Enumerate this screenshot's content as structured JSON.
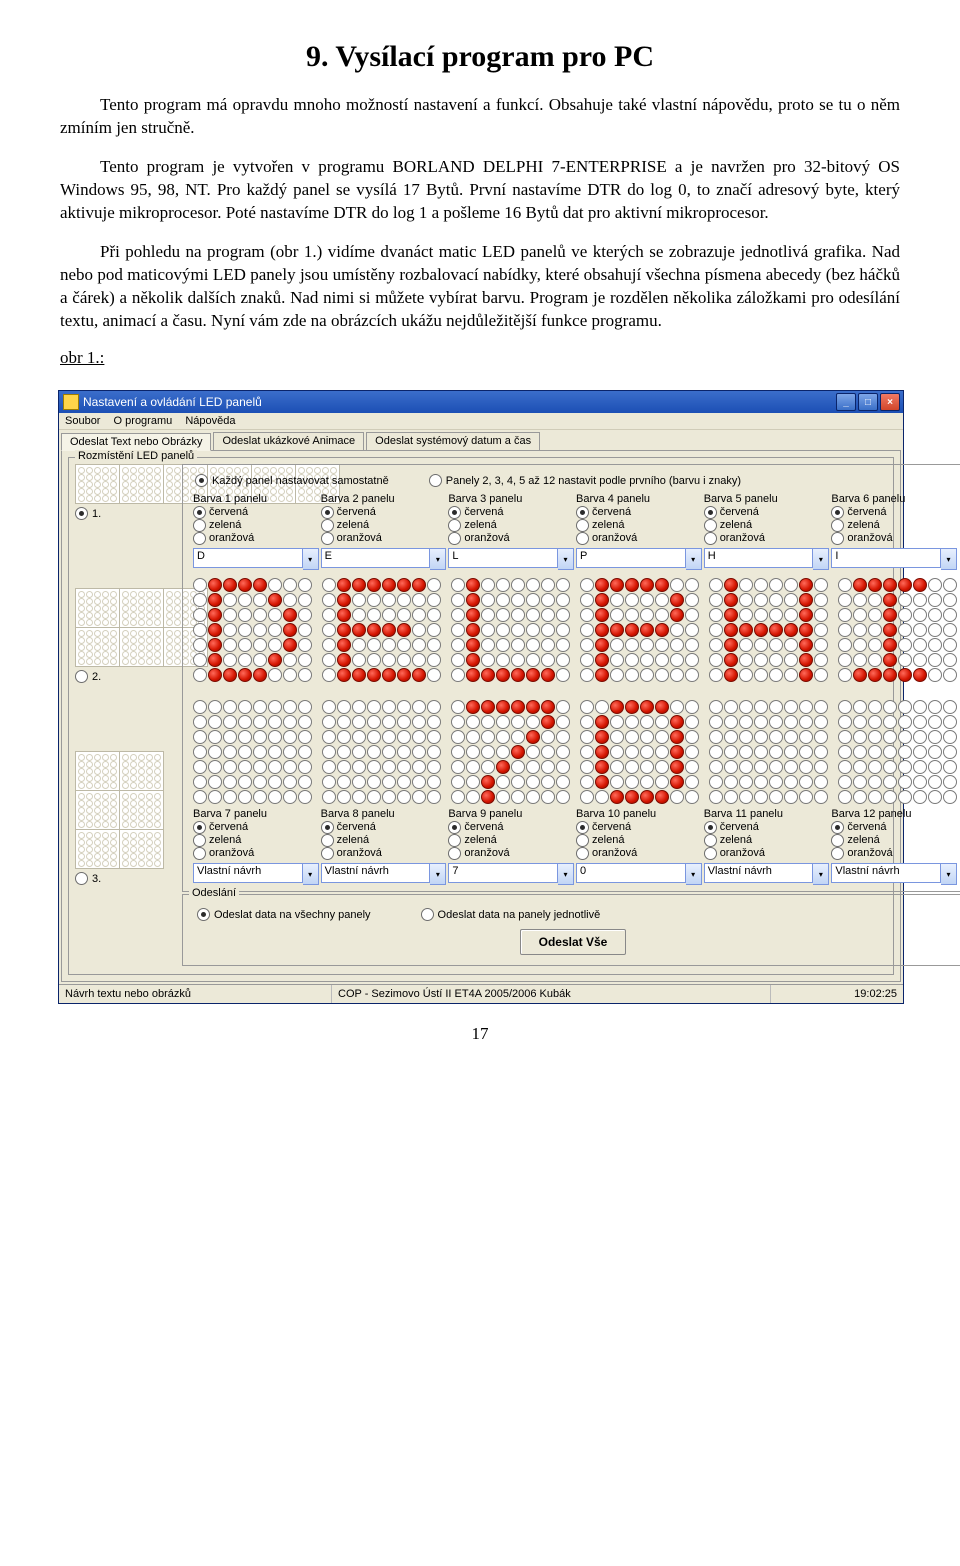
{
  "doc": {
    "title": "9. Vysílací program pro PC",
    "p1": "Tento program má opravdu mnoho možností nastavení a funkcí. Obsahuje také vlastní nápovědu, proto se tu o něm zmíním jen stručně.",
    "p2": "Tento program je vytvořen v programu BORLAND DELPHI 7-ENTERPRISE a je navržen pro 32-bitový OS Windows 95, 98, NT. Pro každý panel se vysílá 17 Bytů. První nastavíme DTR do log 0, to značí adresový byte, který aktivuje mikroprocesor. Poté nastavíme DTR do log 1 a pošleme 16 Bytů dat pro aktivní mikroprocesor.",
    "p3": "Při pohledu na program (obr 1.) vidíme dvanáct matic LED panelů ve kterých se zobrazuje jednotlivá grafika. Nad nebo pod maticovými LED panely jsou umístěny rozbalovací nabídky, které obsahují všechna písmena abecedy (bez háčků a čárek) a několik dalších znaků. Nad nimi si můžete vybírat barvu. Program je rozdělen několika záložkami pro odesílání textu, animací a času. Nyní vám zde na obrázcích ukážu nejdůležitější funkce programu.",
    "figlabel": "obr 1.:",
    "pagenum": "17"
  },
  "app": {
    "title": "Nastavení a ovládání LED panelů",
    "menu": [
      "Soubor",
      "O programu",
      "Nápověda"
    ],
    "tabs": [
      "Odeslat Text nebo Obrázky",
      "Odeslat ukázkové Animace",
      "Odeslat systémový datum a čas"
    ],
    "layoutLegend": "Rozmístění LED panelů",
    "layoutRadios": [
      "1.",
      "2.",
      "3."
    ],
    "modeA": "Každý panel nastavovat samostatně",
    "modeB": "Panely 2, 3, 4, 5 až 12 nastavit podle prvního (barvu i znaky)",
    "colorLabels": [
      "červená",
      "zelená",
      "oranžová"
    ],
    "panelsTop": [
      {
        "head": "Barva 1 panelu",
        "sel": 0,
        "combo": "D"
      },
      {
        "head": "Barva 2 panelu",
        "sel": 0,
        "combo": "E"
      },
      {
        "head": "Barva 3 panelu",
        "sel": 0,
        "combo": "L"
      },
      {
        "head": "Barva 4 panelu",
        "sel": 0,
        "combo": "P"
      },
      {
        "head": "Barva 5 panelu",
        "sel": 0,
        "combo": "H"
      },
      {
        "head": "Barva 6 panelu",
        "sel": 0,
        "combo": "I"
      }
    ],
    "panelsBot": [
      {
        "head": "Barva 7 panelu",
        "sel": 0,
        "combo": "Vlastní návrh"
      },
      {
        "head": "Barva 8 panelu",
        "sel": 0,
        "combo": "Vlastní návrh"
      },
      {
        "head": "Barva 9 panelu",
        "sel": 0,
        "combo": "7"
      },
      {
        "head": "Barva 10 panelu",
        "sel": 0,
        "combo": "0"
      },
      {
        "head": "Barva 11 panelu",
        "sel": 0,
        "combo": "Vlastní návrh"
      },
      {
        "head": "Barva 12 panelu",
        "sel": 0,
        "combo": "Vlastní návrh"
      }
    ],
    "sendLegend": "Odeslání",
    "sendA": "Odeslat data na všechny panely",
    "sendB": "Odeslat data na panely jednotlivě",
    "sendBtn": "Odeslat Vše",
    "status": {
      "left": "Návrh textu nebo obrázků",
      "mid": "COP - Sezimovo Ústí II  ET4A 2005/2006 Kubák",
      "right": "19:02:25"
    },
    "sysbtn": {
      "min": "_",
      "max": "□",
      "close": "×"
    },
    "glyphs": {
      "D": [
        "0111100",
        "0100010",
        "0100001",
        "0100001",
        "0100001",
        "0100010",
        "0111100"
      ],
      "E": [
        "0111111",
        "0100000",
        "0100000",
        "0111110",
        "0100000",
        "0100000",
        "0111111"
      ],
      "L": [
        "0100000",
        "0100000",
        "0100000",
        "0100000",
        "0100000",
        "0100000",
        "0111111"
      ],
      "P": [
        "0111110",
        "0100001",
        "0100001",
        "0111110",
        "0100000",
        "0100000",
        "0100000"
      ],
      "H": [
        "0100001",
        "0100001",
        "0100001",
        "0111111",
        "0100001",
        "0100001",
        "0100001"
      ],
      "I": [
        "0111110",
        "0001000",
        "0001000",
        "0001000",
        "0001000",
        "0001000",
        "0111110"
      ],
      "7": [
        "0111111",
        "0000001",
        "0000010",
        "0000100",
        "0001000",
        "0010000",
        "0010000"
      ],
      "0": [
        "0011110",
        "0100001",
        "0100001",
        "0100001",
        "0100001",
        "0100001",
        "0011110"
      ],
      "blank": [
        "0000000",
        "0000000",
        "0000000",
        "0000000",
        "0000000",
        "0000000",
        "0000000"
      ]
    },
    "rowTopGlyphs": [
      "D",
      "E",
      "L",
      "P",
      "H",
      "I"
    ],
    "rowBotGlyphs": [
      "blank",
      "blank",
      "7",
      "0",
      "blank",
      "blank"
    ]
  }
}
